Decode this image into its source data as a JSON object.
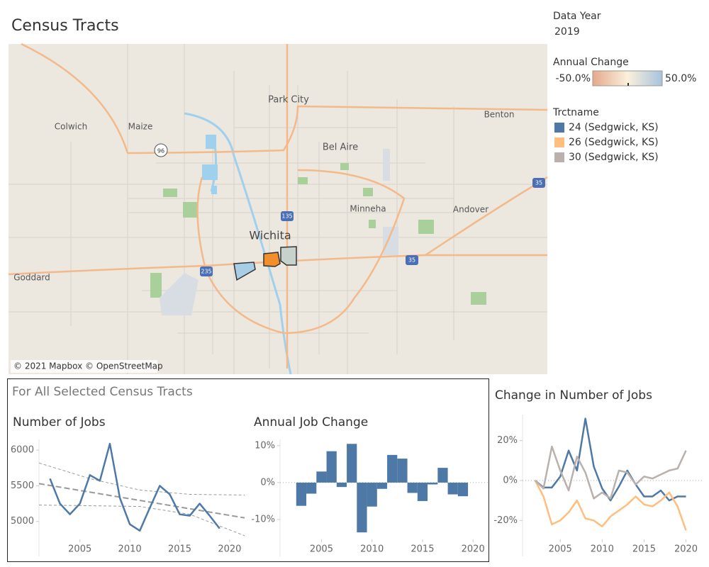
{
  "title": "Census Tracts",
  "data_year": {
    "title": "Data Year",
    "value": "2019"
  },
  "color_legend": {
    "title": "Annual Change",
    "min_label": "-50.0%",
    "max_label": "50.0%"
  },
  "map": {
    "attribution": "© 2021 Mapbox © OpenStreetMap",
    "places": [
      "Park City",
      "Colwich",
      "Maize",
      "Bel Aire",
      "Benton",
      "Minneha",
      "Andover",
      "Wichita",
      "Goddard"
    ],
    "shields": [
      "96",
      "135",
      "235",
      "35",
      "35"
    ]
  },
  "panel_title": "For All Selected Census Tracts",
  "chart_data": [
    {
      "type": "line",
      "title": "Number of Jobs",
      "color": "#4e79a7",
      "x": [
        2002,
        2003,
        2004,
        2005,
        2006,
        2007,
        2008,
        2009,
        2010,
        2011,
        2012,
        2013,
        2014,
        2015,
        2016,
        2017,
        2018,
        2019
      ],
      "values": [
        5600,
        5250,
        5100,
        5250,
        5650,
        5570,
        6090,
        5330,
        4960,
        4870,
        5190,
        5500,
        5380,
        5100,
        5080,
        5250,
        5080,
        4900
      ],
      "trend_line": {
        "x": [
          2000.9,
          2021.5
        ],
        "values": [
          5530,
          5050
        ]
      },
      "trend_band": {
        "x": [
          2000.9,
          2006,
          2011,
          2016,
          2021.5
        ],
        "upper": [
          5820,
          5600,
          5440,
          5380,
          5370
        ],
        "lower": [
          5230,
          5220,
          5210,
          5100,
          4800
        ]
      },
      "xlim": [
        2000.9,
        2021.5
      ],
      "xticks": [
        2005,
        2010,
        2015,
        2020
      ],
      "ylim": [
        4510,
        6150
      ],
      "yticks": [
        5000,
        5500,
        6000
      ]
    },
    {
      "type": "bar",
      "title": "Annual Job Change",
      "color": "#4e79a7",
      "x": [
        2003,
        2004,
        2005,
        2006,
        2007,
        2008,
        2009,
        2010,
        2011,
        2012,
        2013,
        2014,
        2015,
        2016,
        2017,
        2018,
        2019
      ],
      "values": [
        -6.3,
        -3,
        3,
        8.5,
        -1.2,
        10.5,
        -13.5,
        -6.5,
        -1.7,
        7.5,
        6.5,
        -2.8,
        -5,
        -0.5,
        4,
        -3.2,
        -3.7
      ],
      "xlim": [
        2000.9,
        2021.6
      ],
      "xticks": [
        2005,
        2010,
        2015,
        2020
      ],
      "ylim": [
        -20,
        11.7
      ],
      "yticks": [
        {
          "value": -10,
          "label": "-10%"
        },
        {
          "value": 0,
          "label": "0%"
        },
        {
          "value": 10,
          "label": "10%"
        }
      ],
      "zero_line": true
    },
    {
      "type": "line",
      "title": "Change in Number of Jobs",
      "legend_title": "Trctname",
      "x": [
        2002,
        2003,
        2004,
        2005,
        2006,
        2007,
        2008,
        2009,
        2010,
        2011,
        2012,
        2013,
        2014,
        2015,
        2016,
        2017,
        2018,
        2019,
        2020
      ],
      "series": [
        {
          "name": "24 (Sedgwick, KS)",
          "color": "#4e79a7",
          "values": [
            0,
            -3.5,
            -3.5,
            2,
            15,
            5,
            31,
            7,
            -4,
            -10,
            -3,
            5,
            -2,
            -8,
            -8,
            -5,
            -10,
            -8,
            -8
          ]
        },
        {
          "name": "26 (Sedgwick, KS)",
          "color": "#ffbe7d",
          "values": [
            0,
            -8,
            -22,
            -20,
            -16,
            -10,
            -19,
            -20,
            -23,
            -18,
            -15,
            -12,
            -8,
            -12,
            -13,
            -10,
            -6,
            -13,
            -25
          ]
        },
        {
          "name": "30 (Sedgwick, KS)",
          "color": "#bab0ac",
          "values": [
            0,
            -4,
            17,
            5,
            -5,
            12,
            4,
            -9,
            -6,
            -9,
            5,
            4,
            -2,
            2,
            1,
            3,
            5,
            6,
            15
          ]
        }
      ],
      "xlim": [
        2000.5,
        2021.9
      ],
      "xticks": [
        2005,
        2010,
        2015,
        2020
      ],
      "ylim": [
        -38,
        33
      ],
      "yticks": [
        {
          "value": -20,
          "label": "-20%"
        },
        {
          "value": 0,
          "label": "0%"
        },
        {
          "value": 20,
          "label": "20%"
        }
      ],
      "zero_line": true
    }
  ]
}
